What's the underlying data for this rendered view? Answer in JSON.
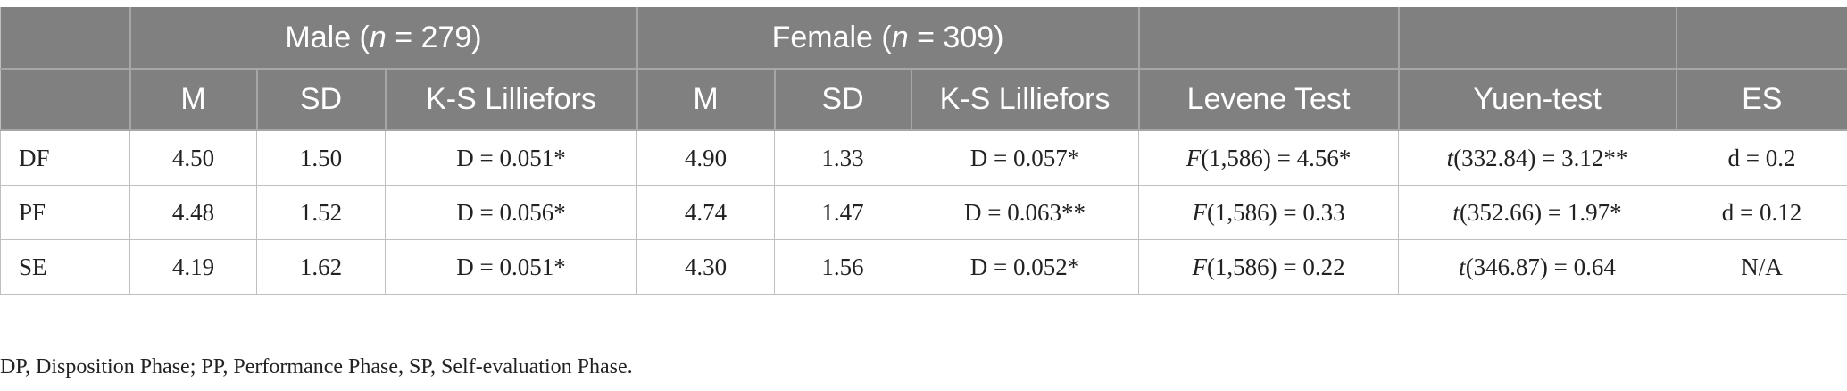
{
  "header": {
    "group_male": {
      "label": "Male (",
      "n_symbol": "n",
      "rest": " = 279)"
    },
    "group_female": {
      "label": "Female (",
      "n_symbol": "n",
      "rest": " = 309)"
    },
    "columns": [
      "M",
      "SD",
      "K-S Lilliefors",
      "M",
      "SD",
      "K-S Lilliefors",
      "Levene Test",
      "Yuen-test",
      "ES"
    ]
  },
  "rows": [
    {
      "label": "DF",
      "male_m": "4.50",
      "male_sd": "1.50",
      "male_ks": "D = 0.051*",
      "female_m": "4.90",
      "female_sd": "1.33",
      "female_ks": "D = 0.057*",
      "levene_sym": "F",
      "levene_rest": "(1,586) = 4.56*",
      "yuen_sym": "t",
      "yuen_rest": "(332.84) = 3.12**",
      "es": "d = 0.2"
    },
    {
      "label": "PF",
      "male_m": "4.48",
      "male_sd": "1.52",
      "male_ks": "D = 0.056*",
      "female_m": "4.74",
      "female_sd": "1.47",
      "female_ks": "D = 0.063**",
      "levene_sym": "F",
      "levene_rest": "(1,586) = 0.33",
      "yuen_sym": "t",
      "yuen_rest": "(352.66) = 1.97*",
      "es": "d = 0.12"
    },
    {
      "label": "SE",
      "male_m": "4.19",
      "male_sd": "1.62",
      "male_ks": "D = 0.051*",
      "female_m": "4.30",
      "female_sd": "1.56",
      "female_ks": "D = 0.052*",
      "levene_sym": "F",
      "levene_rest": "(1,586) = 0.22",
      "yuen_sym": "t",
      "yuen_rest": "(346.87) = 0.64",
      "es": "N/A"
    }
  ],
  "footnote": "DP, Disposition Phase; PP, Performance Phase, SP, Self-evaluation Phase.",
  "colors": {
    "header_bg": "#808080",
    "header_text": "#ffffff",
    "grid": "#bfbfbf"
  }
}
